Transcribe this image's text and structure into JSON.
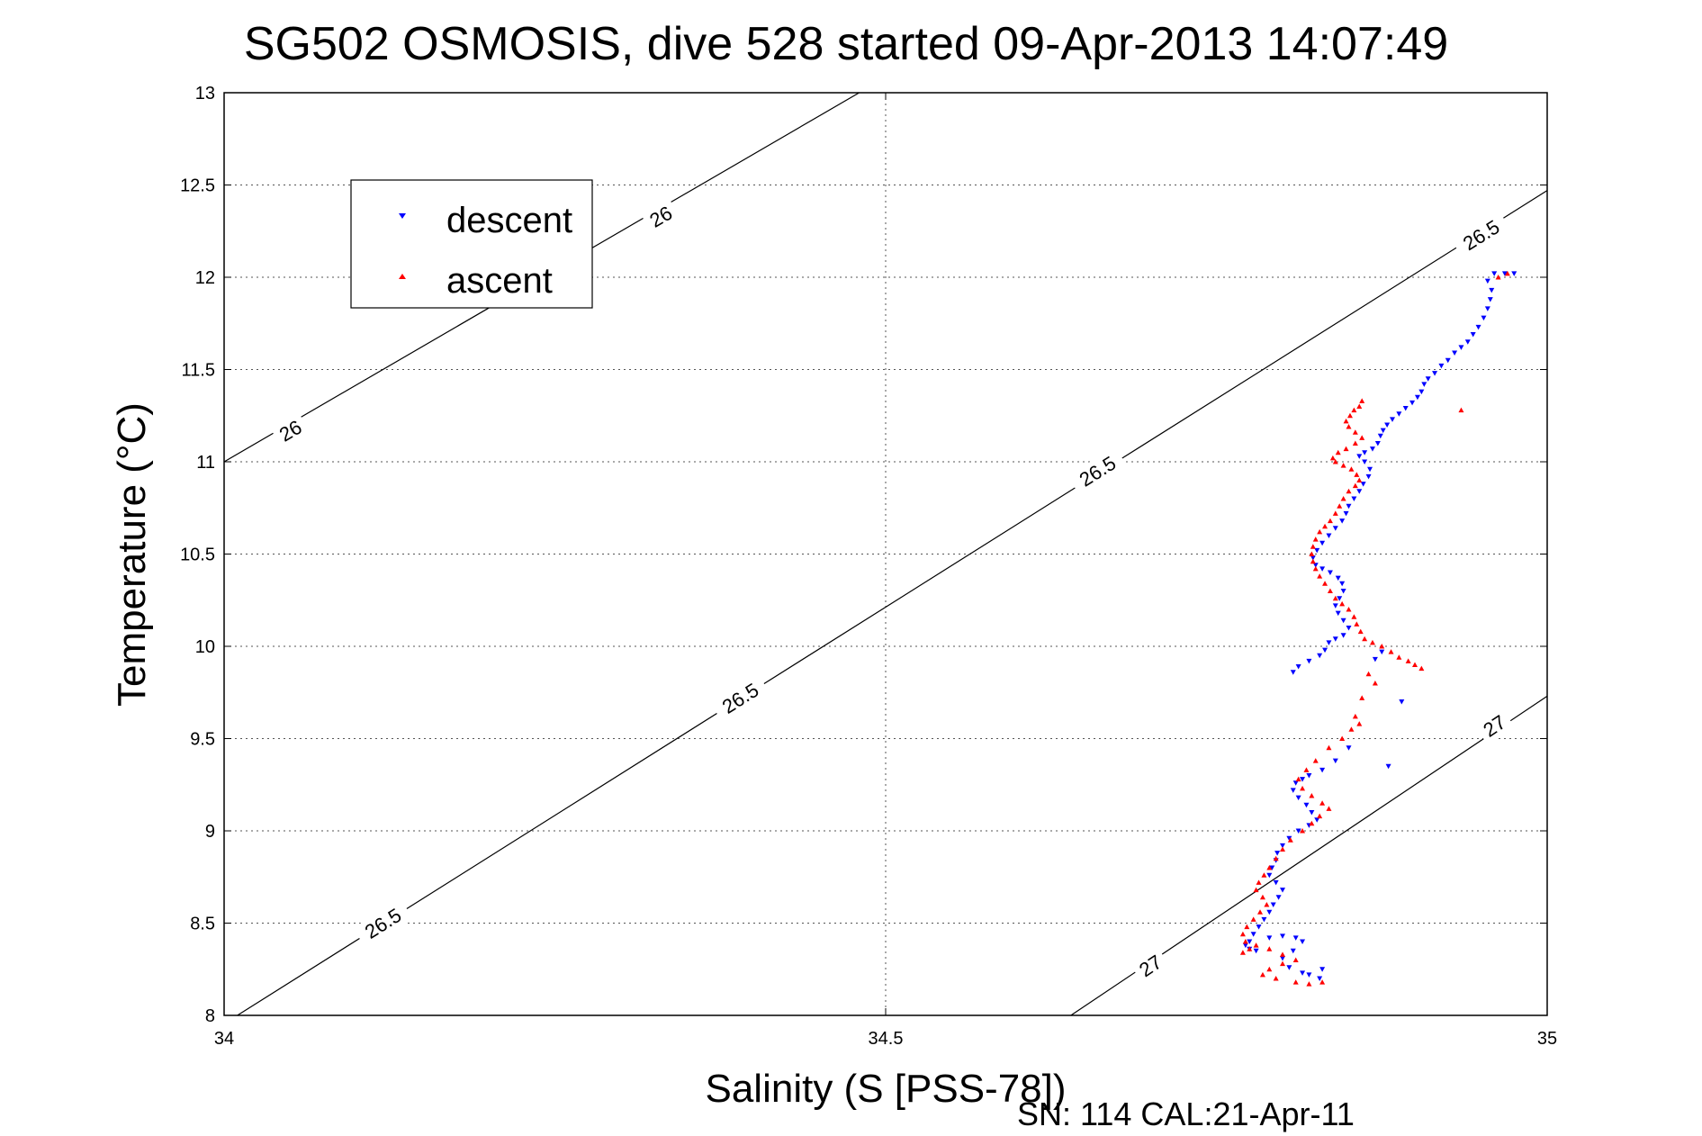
{
  "chart_data": {
    "type": "scatter",
    "title": "SG502 OSMOSIS, dive 528 started 09-Apr-2013 14:07:49",
    "xlabel": "Salinity (S [PSS-78])",
    "ylabel": "Temperature (°C)",
    "xlim": [
      34,
      35
    ],
    "ylim": [
      8,
      13
    ],
    "x_ticks": [
      "34",
      "34.5",
      "35"
    ],
    "y_ticks": [
      "8",
      "8.5",
      "9",
      "9.5",
      "10",
      "10.5",
      "11",
      "11.5",
      "12",
      "12.5",
      "13"
    ],
    "grid": true,
    "legend_position": "top-left",
    "footer": "SN: 114  CAL:21-Apr-11",
    "series": [
      {
        "name": "descent",
        "color": "#0000ff",
        "marker": "triangle-down",
        "points": [
          [
            34.96,
            12.02
          ],
          [
            34.968,
            12.02
          ],
          [
            34.975,
            12.02
          ],
          [
            34.955,
            11.98
          ],
          [
            34.958,
            11.93
          ],
          [
            34.957,
            11.88
          ],
          [
            34.955,
            11.83
          ],
          [
            34.952,
            11.78
          ],
          [
            34.948,
            11.73
          ],
          [
            34.944,
            11.69
          ],
          [
            34.94,
            11.65
          ],
          [
            34.935,
            11.62
          ],
          [
            34.93,
            11.59
          ],
          [
            34.925,
            11.55
          ],
          [
            34.92,
            11.52
          ],
          [
            34.915,
            11.48
          ],
          [
            34.91,
            11.45
          ],
          [
            34.907,
            11.42
          ],
          [
            34.905,
            11.38
          ],
          [
            34.902,
            11.35
          ],
          [
            34.898,
            11.32
          ],
          [
            34.893,
            11.29
          ],
          [
            34.888,
            11.26
          ],
          [
            34.883,
            11.23
          ],
          [
            34.879,
            11.2
          ],
          [
            34.876,
            11.17
          ],
          [
            34.874,
            11.14
          ],
          [
            34.872,
            11.1
          ],
          [
            34.868,
            11.07
          ],
          [
            34.862,
            11.05
          ],
          [
            34.858,
            11.03
          ],
          [
            34.862,
            11.0
          ],
          [
            34.866,
            10.96
          ],
          [
            34.865,
            10.92
          ],
          [
            34.861,
            10.88
          ],
          [
            34.858,
            10.84
          ],
          [
            34.854,
            10.8
          ],
          [
            34.85,
            10.76
          ],
          [
            34.848,
            10.72
          ],
          [
            34.845,
            10.68
          ],
          [
            34.84,
            10.64
          ],
          [
            34.835,
            10.6
          ],
          [
            34.83,
            10.56
          ],
          [
            34.826,
            10.52
          ],
          [
            34.823,
            10.48
          ],
          [
            34.825,
            10.44
          ],
          [
            34.83,
            10.42
          ],
          [
            34.836,
            10.4
          ],
          [
            34.842,
            10.37
          ],
          [
            34.845,
            10.34
          ],
          [
            34.846,
            10.3
          ],
          [
            34.843,
            10.26
          ],
          [
            34.84,
            10.22
          ],
          [
            34.842,
            10.18
          ],
          [
            34.846,
            10.14
          ],
          [
            34.85,
            10.1
          ],
          [
            34.846,
            10.06
          ],
          [
            34.84,
            10.04
          ],
          [
            34.835,
            10.02
          ],
          [
            34.832,
            9.98
          ],
          [
            34.828,
            9.95
          ],
          [
            34.82,
            9.92
          ],
          [
            34.812,
            9.89
          ],
          [
            34.808,
            9.86
          ],
          [
            34.87,
            9.93
          ],
          [
            34.875,
            9.97
          ],
          [
            34.89,
            9.7
          ],
          [
            34.88,
            9.35
          ],
          [
            34.85,
            9.45
          ],
          [
            34.84,
            9.38
          ],
          [
            34.83,
            9.33
          ],
          [
            34.82,
            9.3
          ],
          [
            34.815,
            9.28
          ],
          [
            34.81,
            9.26
          ],
          [
            34.808,
            9.22
          ],
          [
            34.812,
            9.18
          ],
          [
            34.818,
            9.14
          ],
          [
            34.822,
            9.1
          ],
          [
            34.826,
            9.06
          ],
          [
            34.82,
            9.03
          ],
          [
            34.812,
            9.0
          ],
          [
            34.805,
            8.96
          ],
          [
            34.8,
            8.92
          ],
          [
            34.796,
            8.88
          ],
          [
            34.795,
            8.84
          ],
          [
            34.792,
            8.8
          ],
          [
            34.79,
            8.76
          ],
          [
            34.795,
            8.72
          ],
          [
            34.8,
            8.68
          ],
          [
            34.797,
            8.64
          ],
          [
            34.793,
            8.6
          ],
          [
            34.79,
            8.56
          ],
          [
            34.786,
            8.52
          ],
          [
            34.782,
            8.48
          ],
          [
            34.778,
            8.44
          ],
          [
            34.775,
            8.4
          ],
          [
            34.772,
            8.38
          ],
          [
            34.775,
            8.36
          ],
          [
            34.78,
            8.35
          ],
          [
            34.79,
            8.42
          ],
          [
            34.8,
            8.43
          ],
          [
            34.81,
            8.42
          ],
          [
            34.815,
            8.4
          ],
          [
            34.808,
            8.35
          ],
          [
            34.8,
            8.31
          ],
          [
            34.805,
            8.26
          ],
          [
            34.815,
            8.23
          ],
          [
            34.82,
            8.22
          ],
          [
            34.828,
            8.2
          ],
          [
            34.83,
            8.25
          ]
        ]
      },
      {
        "name": "ascent",
        "color": "#ff0000",
        "marker": "triangle-up",
        "points": [
          [
            34.97,
            12.02
          ],
          [
            34.963,
            12.0
          ],
          [
            34.935,
            11.28
          ],
          [
            34.86,
            11.33
          ],
          [
            34.858,
            11.3
          ],
          [
            34.854,
            11.28
          ],
          [
            34.851,
            11.25
          ],
          [
            34.848,
            11.22
          ],
          [
            34.85,
            11.19
          ],
          [
            34.855,
            11.16
          ],
          [
            34.86,
            11.13
          ],
          [
            34.855,
            11.1
          ],
          [
            34.848,
            11.07
          ],
          [
            34.842,
            11.05
          ],
          [
            34.838,
            11.02
          ],
          [
            34.84,
            11.0
          ],
          [
            34.846,
            10.98
          ],
          [
            34.852,
            10.96
          ],
          [
            34.856,
            10.93
          ],
          [
            34.858,
            10.9
          ],
          [
            34.855,
            10.87
          ],
          [
            34.85,
            10.84
          ],
          [
            34.846,
            10.8
          ],
          [
            34.843,
            10.76
          ],
          [
            34.84,
            10.72
          ],
          [
            34.836,
            10.68
          ],
          [
            34.832,
            10.65
          ],
          [
            34.828,
            10.62
          ],
          [
            34.825,
            10.58
          ],
          [
            34.823,
            10.54
          ],
          [
            34.822,
            10.5
          ],
          [
            34.823,
            10.46
          ],
          [
            34.825,
            10.42
          ],
          [
            34.828,
            10.38
          ],
          [
            34.832,
            10.34
          ],
          [
            34.836,
            10.3
          ],
          [
            34.84,
            10.26
          ],
          [
            34.845,
            10.23
          ],
          [
            34.85,
            10.2
          ],
          [
            34.854,
            10.16
          ],
          [
            34.856,
            10.12
          ],
          [
            34.859,
            10.08
          ],
          [
            34.862,
            10.04
          ],
          [
            34.868,
            10.02
          ],
          [
            34.875,
            10.0
          ],
          [
            34.882,
            9.97
          ],
          [
            34.888,
            9.94
          ],
          [
            34.895,
            9.92
          ],
          [
            34.9,
            9.9
          ],
          [
            34.905,
            9.88
          ],
          [
            34.865,
            9.85
          ],
          [
            34.87,
            9.8
          ],
          [
            34.86,
            9.72
          ],
          [
            34.855,
            9.62
          ],
          [
            34.858,
            9.58
          ],
          [
            34.852,
            9.55
          ],
          [
            34.845,
            9.5
          ],
          [
            34.835,
            9.45
          ],
          [
            34.825,
            9.38
          ],
          [
            34.818,
            9.33
          ],
          [
            34.812,
            9.28
          ],
          [
            34.815,
            9.23
          ],
          [
            34.822,
            9.19
          ],
          [
            34.83,
            9.15
          ],
          [
            34.835,
            9.12
          ],
          [
            34.828,
            9.08
          ],
          [
            34.822,
            9.04
          ],
          [
            34.815,
            9.0
          ],
          [
            34.806,
            8.95
          ],
          [
            34.8,
            8.9
          ],
          [
            34.795,
            8.85
          ],
          [
            34.79,
            8.8
          ],
          [
            34.786,
            8.76
          ],
          [
            34.782,
            8.72
          ],
          [
            34.78,
            8.68
          ],
          [
            34.785,
            8.64
          ],
          [
            34.788,
            8.6
          ],
          [
            34.783,
            8.56
          ],
          [
            34.778,
            8.52
          ],
          [
            34.773,
            8.48
          ],
          [
            34.77,
            8.44
          ],
          [
            34.772,
            8.4
          ],
          [
            34.775,
            8.36
          ],
          [
            34.77,
            8.34
          ],
          [
            34.78,
            8.38
          ],
          [
            34.79,
            8.36
          ],
          [
            34.8,
            8.33
          ],
          [
            34.81,
            8.3
          ],
          [
            34.8,
            8.28
          ],
          [
            34.79,
            8.25
          ],
          [
            34.785,
            8.22
          ],
          [
            34.795,
            8.2
          ],
          [
            34.81,
            8.18
          ],
          [
            34.82,
            8.17
          ],
          [
            34.83,
            8.18
          ]
        ]
      }
    ],
    "isopycnals": [
      {
        "label": "26",
        "points": [
          [
            34.0,
            11.0
          ],
          [
            34.48,
            13.0
          ]
        ],
        "label_positions": [
          [
            34.05,
            11.17
          ],
          [
            34.33,
            12.33
          ]
        ]
      },
      {
        "label": "26.5",
        "points": [
          [
            34.01,
            8.0
          ],
          [
            35.0,
            12.47
          ]
        ],
        "label_positions": [
          [
            34.12,
            8.5
          ],
          [
            34.39,
            9.72
          ],
          [
            34.66,
            10.95
          ],
          [
            34.95,
            12.23
          ]
        ]
      },
      {
        "label": "27",
        "points": [
          [
            34.64,
            8.0
          ],
          [
            35.0,
            9.73
          ]
        ],
        "label_positions": [
          [
            34.7,
            8.27
          ],
          [
            34.96,
            9.57
          ]
        ]
      }
    ]
  }
}
